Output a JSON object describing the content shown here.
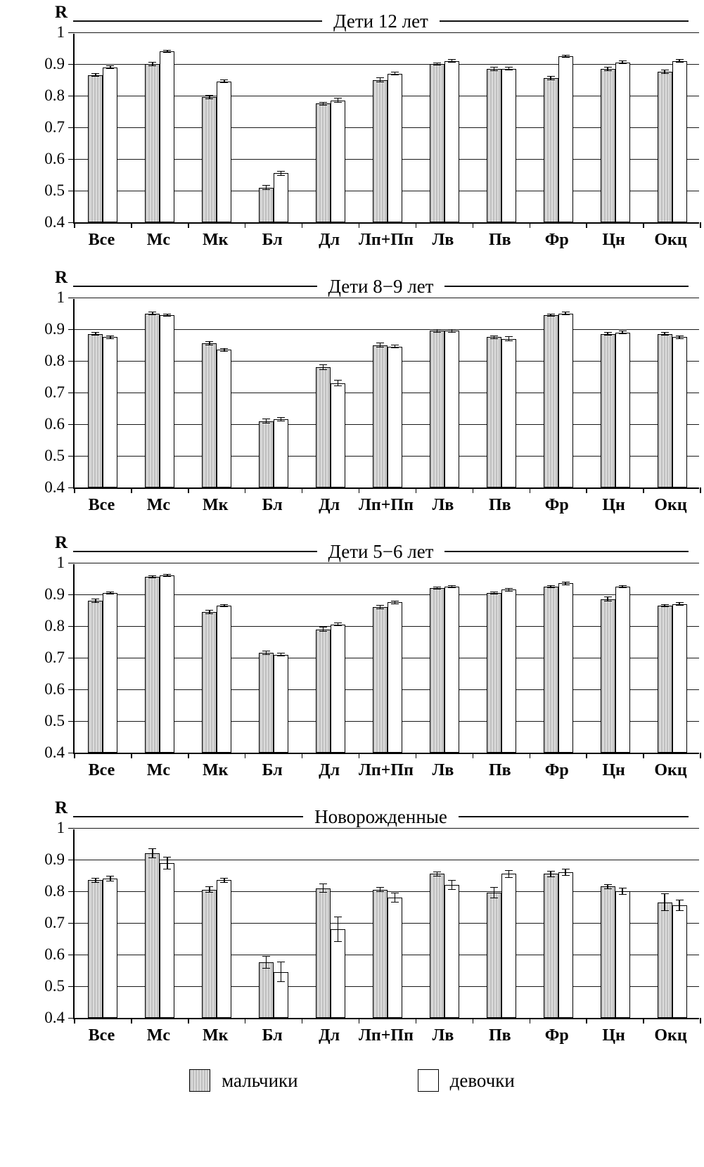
{
  "axis": {
    "label": "R"
  },
  "colors": {
    "boys_fill": "#cccccc",
    "girls_fill": "#ffffff",
    "line": "#000000"
  },
  "legend": {
    "items": [
      {
        "label": "мальчики",
        "style": "boys"
      },
      {
        "label": "девочки",
        "style": "girls"
      }
    ]
  },
  "chart_data": [
    {
      "type": "bar",
      "title": "Дети 12 лет",
      "ylabel": "R",
      "ylim": [
        0.4,
        1
      ],
      "yticks": [
        0.4,
        0.5,
        0.6,
        0.7,
        0.8,
        0.9,
        1
      ],
      "grid": true,
      "categories": [
        "Все",
        "Мс",
        "Мк",
        "Бл",
        "Дл",
        "Лп+Пп",
        "Лв",
        "Пв",
        "Фр",
        "Цн",
        "Окц"
      ],
      "series": [
        {
          "name": "мальчики",
          "values": [
            0.865,
            0.9,
            0.795,
            0.51,
            0.775,
            0.85,
            0.9,
            0.885,
            0.855,
            0.885,
            0.875
          ],
          "errors": [
            0.006,
            0.006,
            0.007,
            0.008,
            0.006,
            0.007,
            0.005,
            0.007,
            0.007,
            0.007,
            0.007
          ]
        },
        {
          "name": "девочки",
          "values": [
            0.89,
            0.94,
            0.845,
            0.555,
            0.785,
            0.87,
            0.91,
            0.885,
            0.925,
            0.905,
            0.91
          ],
          "errors": [
            0.005,
            0.005,
            0.006,
            0.008,
            0.008,
            0.006,
            0.005,
            0.006,
            0.005,
            0.006,
            0.005
          ]
        }
      ]
    },
    {
      "type": "bar",
      "title": "Дети 8−9 лет",
      "ylabel": "R",
      "ylim": [
        0.4,
        1
      ],
      "yticks": [
        0.4,
        0.5,
        0.6,
        0.7,
        0.8,
        0.9,
        1
      ],
      "grid": true,
      "categories": [
        "Все",
        "Мс",
        "Мк",
        "Бл",
        "Дл",
        "Лп+Пп",
        "Лв",
        "Пв",
        "Фр",
        "Цн",
        "Окц"
      ],
      "series": [
        {
          "name": "мальчики",
          "values": [
            0.885,
            0.95,
            0.855,
            0.61,
            0.78,
            0.85,
            0.895,
            0.875,
            0.945,
            0.885,
            0.885
          ],
          "errors": [
            0.006,
            0.005,
            0.007,
            0.008,
            0.008,
            0.007,
            0.006,
            0.006,
            0.005,
            0.006,
            0.006
          ]
        },
        {
          "name": "девочки",
          "values": [
            0.875,
            0.945,
            0.835,
            0.615,
            0.73,
            0.845,
            0.895,
            0.87,
            0.95,
            0.89,
            0.875
          ],
          "errors": [
            0.005,
            0.005,
            0.006,
            0.007,
            0.01,
            0.006,
            0.006,
            0.007,
            0.005,
            0.006,
            0.006
          ]
        }
      ]
    },
    {
      "type": "bar",
      "title": "Дети 5−6 лет",
      "ylabel": "R",
      "ylim": [
        0.4,
        1
      ],
      "yticks": [
        0.4,
        0.5,
        0.6,
        0.7,
        0.8,
        0.9,
        1
      ],
      "grid": true,
      "categories": [
        "Все",
        "Мс",
        "Мк",
        "Бл",
        "Дл",
        "Лп+Пп",
        "Лв",
        "Пв",
        "Фр",
        "Цн",
        "Окц"
      ],
      "series": [
        {
          "name": "мальчики",
          "values": [
            0.88,
            0.955,
            0.845,
            0.715,
            0.79,
            0.86,
            0.92,
            0.905,
            0.925,
            0.885,
            0.865
          ],
          "errors": [
            0.006,
            0.004,
            0.007,
            0.007,
            0.008,
            0.006,
            0.005,
            0.005,
            0.005,
            0.008,
            0.005
          ]
        },
        {
          "name": "девочки",
          "values": [
            0.905,
            0.96,
            0.865,
            0.71,
            0.805,
            0.875,
            0.925,
            0.915,
            0.935,
            0.925,
            0.87
          ],
          "errors": [
            0.005,
            0.004,
            0.005,
            0.006,
            0.006,
            0.005,
            0.005,
            0.005,
            0.005,
            0.005,
            0.005
          ]
        }
      ]
    },
    {
      "type": "bar",
      "title": "Новорожденные",
      "ylabel": "R",
      "ylim": [
        0.4,
        1
      ],
      "yticks": [
        0.4,
        0.5,
        0.6,
        0.7,
        0.8,
        0.9,
        1
      ],
      "grid": true,
      "categories": [
        "Все",
        "Мс",
        "Мк",
        "Бл",
        "Дл",
        "Лп+Пп",
        "Лв",
        "Пв",
        "Фр",
        "Цн",
        "Окц"
      ],
      "series": [
        {
          "name": "мальчики",
          "values": [
            0.835,
            0.92,
            0.805,
            0.575,
            0.81,
            0.805,
            0.855,
            0.795,
            0.855,
            0.815,
            0.765
          ],
          "errors": [
            0.008,
            0.015,
            0.01,
            0.02,
            0.015,
            0.008,
            0.008,
            0.018,
            0.01,
            0.008,
            0.028
          ]
        },
        {
          "name": "девочки",
          "values": [
            0.84,
            0.89,
            0.835,
            0.545,
            0.68,
            0.78,
            0.82,
            0.855,
            0.86,
            0.8,
            0.755
          ],
          "errors": [
            0.008,
            0.02,
            0.008,
            0.032,
            0.04,
            0.015,
            0.015,
            0.012,
            0.012,
            0.012,
            0.018
          ]
        }
      ]
    }
  ]
}
